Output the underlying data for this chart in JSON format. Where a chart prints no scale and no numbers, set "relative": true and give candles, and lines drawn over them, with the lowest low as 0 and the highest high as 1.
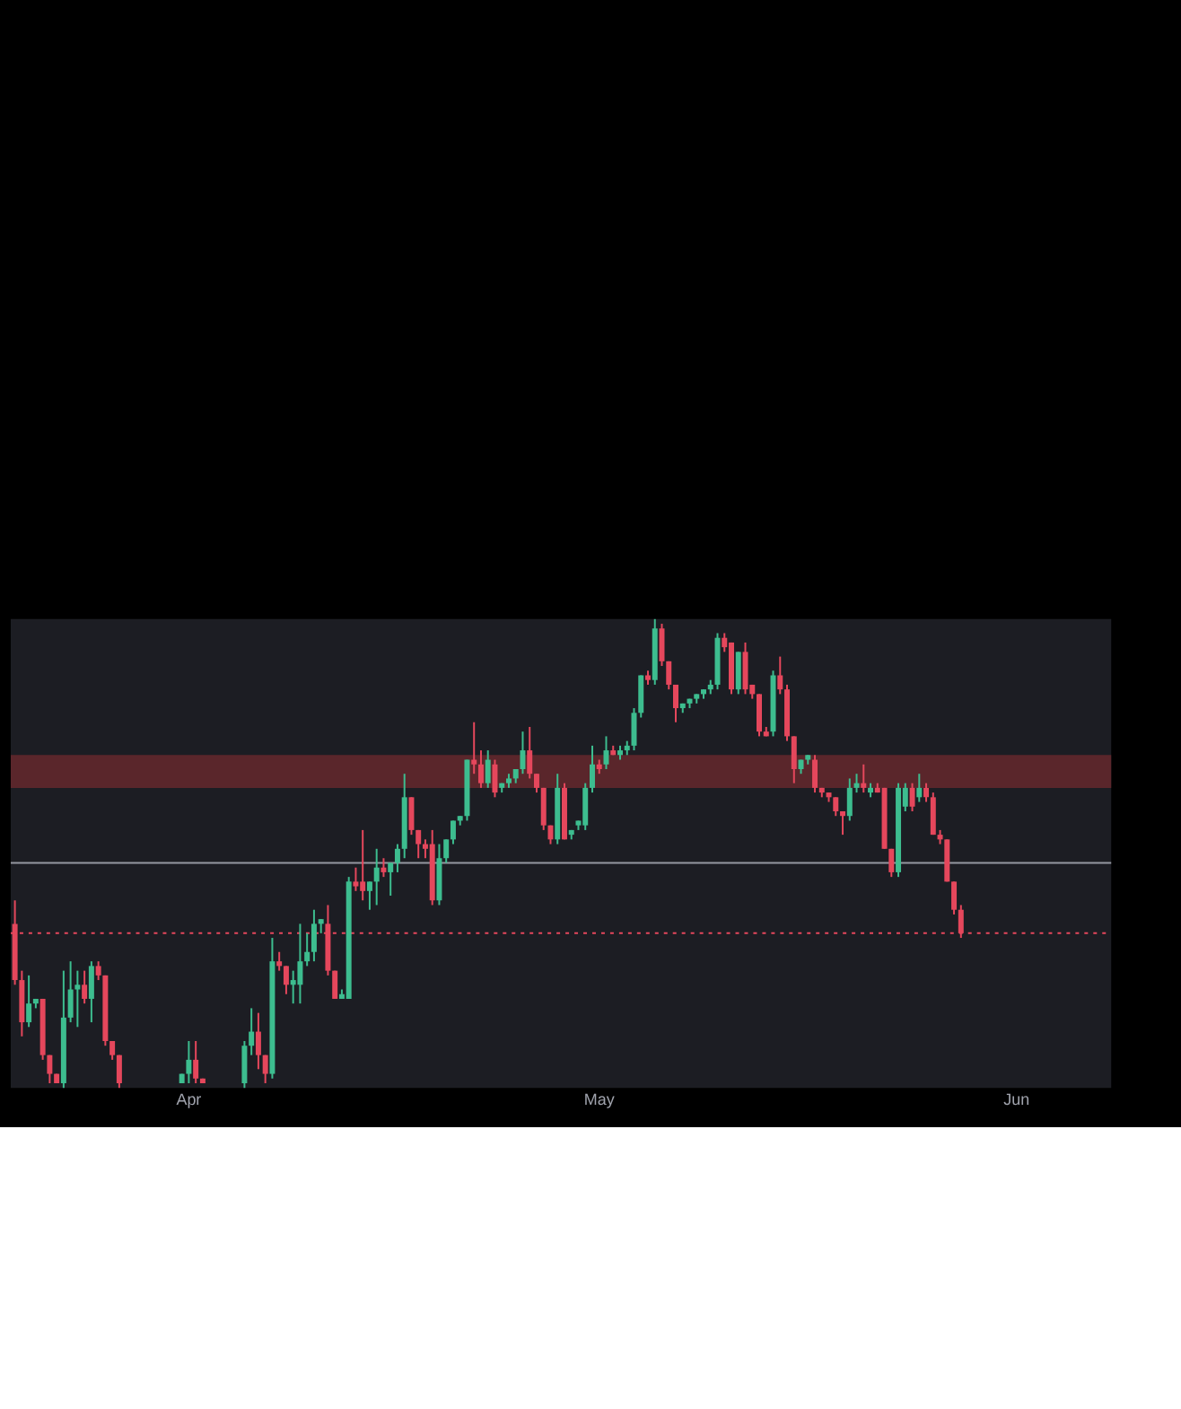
{
  "chart_data": {
    "type": "candlestick",
    "relative": true,
    "categories": [
      null,
      null,
      null,
      null,
      null,
      null,
      null,
      null,
      null,
      null,
      null,
      null,
      null,
      null,
      null,
      null,
      null,
      null,
      null,
      null,
      null,
      null,
      null,
      null,
      null,
      "Apr",
      null,
      null,
      null,
      null,
      null,
      null,
      null,
      null,
      null,
      null,
      null,
      null,
      null,
      null,
      null,
      null,
      null,
      null,
      null,
      null,
      null,
      null,
      null,
      null,
      null,
      null,
      null,
      null,
      null,
      null,
      null,
      null,
      null,
      null,
      null,
      null,
      null,
      null,
      null,
      null,
      null,
      null,
      null,
      null,
      null,
      null,
      null,
      null,
      null,
      null,
      null,
      null,
      null,
      null,
      null,
      null,
      null,
      null,
      "May",
      null,
      null,
      null,
      null,
      null,
      null,
      null,
      null,
      null,
      null,
      null,
      null,
      null,
      null,
      null,
      null,
      null,
      null,
      null,
      null,
      null,
      null,
      null,
      null,
      null,
      null,
      null,
      null,
      null,
      null,
      null,
      null,
      null,
      null,
      null,
      null,
      null,
      null,
      null,
      null,
      null,
      null,
      null,
      null,
      null,
      null,
      null,
      null,
      null,
      null,
      null,
      null,
      null,
      null,
      null,
      null,
      null,
      null,
      null,
      "Jun",
      null,
      null,
      null,
      null,
      null,
      null,
      null,
      null,
      null,
      null,
      null,
      null,
      null
    ],
    "ohlc": [
      [
        0.35,
        0.4,
        0.22,
        0.23
      ],
      [
        0.23,
        0.25,
        0.11,
        0.14
      ],
      [
        0.14,
        0.24,
        0.13,
        0.18
      ],
      [
        0.18,
        0.19,
        0.17,
        0.19
      ],
      [
        0.19,
        0.19,
        0.06,
        0.07
      ],
      [
        0.07,
        0.07,
        0.01,
        0.03
      ],
      [
        0.03,
        0.03,
        0.01,
        0.01
      ],
      [
        0.01,
        0.25,
        0,
        0.15
      ],
      [
        0.15,
        0.27,
        0.14,
        0.21
      ],
      [
        0.21,
        0.25,
        0.13,
        0.22
      ],
      [
        0.22,
        0.25,
        0.18,
        0.19
      ],
      [
        0.19,
        0.27,
        0.14,
        0.26
      ],
      [
        0.26,
        0.27,
        0.23,
        0.24
      ],
      [
        0.24,
        0.24,
        0.09,
        0.1
      ],
      [
        0.1,
        0.1,
        0.06,
        0.07
      ],
      [
        0.07,
        0.07,
        0,
        0.01
      ],
      null,
      null,
      null,
      null,
      null,
      null,
      null,
      null,
      [
        0.01,
        0.03,
        0.01,
        0.03
      ],
      [
        0.03,
        0.1,
        0.01,
        0.06
      ],
      [
        0.06,
        0.1,
        0.01,
        0.02
      ],
      [
        0.02,
        0.02,
        0.01,
        0.01
      ],
      null,
      null,
      null,
      null,
      null,
      [
        0.01,
        0.1,
        0,
        0.09
      ],
      [
        0.09,
        0.17,
        0.07,
        0.12
      ],
      [
        0.12,
        0.16,
        0.04,
        0.07
      ],
      [
        0.07,
        0.07,
        0.01,
        0.03
      ],
      [
        0.03,
        0.32,
        0.02,
        0.27
      ],
      [
        0.27,
        0.29,
        0.25,
        0.26
      ],
      [
        0.26,
        0.26,
        0.2,
        0.22
      ],
      [
        0.22,
        0.25,
        0.18,
        0.23
      ],
      [
        0.22,
        0.35,
        0.18,
        0.27
      ],
      [
        0.27,
        0.33,
        0.26,
        0.29
      ],
      [
        0.29,
        0.38,
        0.27,
        0.35
      ],
      [
        0.35,
        0.36,
        0.33,
        0.36
      ],
      [
        0.35,
        0.39,
        0.24,
        0.25
      ],
      [
        0.25,
        0.25,
        0.19,
        0.19
      ],
      [
        0.19,
        0.21,
        0.19,
        0.2
      ],
      [
        0.19,
        0.45,
        0.19,
        0.44
      ],
      [
        0.44,
        0.47,
        0.42,
        0.43
      ],
      [
        0.44,
        0.55,
        0.4,
        0.42
      ],
      [
        0.42,
        0.44,
        0.38,
        0.44
      ],
      [
        0.44,
        0.51,
        0.39,
        0.47
      ],
      [
        0.47,
        0.49,
        0.45,
        0.46
      ],
      [
        0.46,
        0.48,
        0.41,
        0.48
      ],
      [
        0.48,
        0.52,
        0.46,
        0.51
      ],
      [
        0.51,
        0.67,
        0.49,
        0.62
      ],
      [
        0.62,
        0.62,
        0.54,
        0.55
      ],
      [
        0.55,
        0.55,
        0.49,
        0.52
      ],
      [
        0.52,
        0.53,
        0.49,
        0.51
      ],
      [
        0.52,
        0.55,
        0.39,
        0.4
      ],
      [
        0.4,
        0.52,
        0.39,
        0.49
      ],
      [
        0.49,
        0.53,
        0.48,
        0.53
      ],
      [
        0.53,
        0.57,
        0.52,
        0.57
      ],
      [
        0.57,
        0.58,
        0.56,
        0.58
      ],
      [
        0.58,
        0.7,
        0.57,
        0.7
      ],
      [
        0.7,
        0.78,
        0.67,
        0.69
      ],
      [
        0.69,
        0.72,
        0.64,
        0.65
      ],
      [
        0.65,
        0.72,
        0.64,
        0.7
      ],
      [
        0.69,
        0.7,
        0.62,
        0.63
      ],
      [
        0.64,
        0.65,
        0.63,
        0.65
      ],
      [
        0.65,
        0.67,
        0.64,
        0.66
      ],
      [
        0.66,
        0.68,
        0.65,
        0.68
      ],
      [
        0.68,
        0.76,
        0.67,
        0.72
      ],
      [
        0.72,
        0.77,
        0.66,
        0.67
      ],
      [
        0.67,
        0.67,
        0.63,
        0.64
      ],
      [
        0.64,
        0.64,
        0.55,
        0.56
      ],
      [
        0.56,
        0.56,
        0.52,
        0.53
      ],
      [
        0.53,
        0.67,
        0.52,
        0.64
      ],
      [
        0.64,
        0.65,
        0.53,
        0.53
      ],
      [
        0.54,
        0.55,
        0.53,
        0.55
      ],
      [
        0.56,
        0.57,
        0.55,
        0.57
      ],
      [
        0.56,
        0.65,
        0.55,
        0.64
      ],
      [
        0.64,
        0.73,
        0.63,
        0.69
      ],
      [
        0.69,
        0.7,
        0.67,
        0.68
      ],
      [
        0.69,
        0.75,
        0.68,
        0.72
      ],
      [
        0.72,
        0.73,
        0.71,
        0.71
      ],
      [
        0.71,
        0.73,
        0.7,
        0.72
      ],
      [
        0.72,
        0.74,
        0.71,
        0.73
      ],
      [
        0.73,
        0.81,
        0.72,
        0.8
      ],
      [
        0.8,
        0.88,
        0.79,
        0.88
      ],
      [
        0.88,
        0.89,
        0.86,
        0.87
      ],
      [
        0.87,
        1.0,
        0.86,
        0.98
      ],
      [
        0.98,
        0.99,
        0.9,
        0.91
      ],
      [
        0.91,
        0.91,
        0.85,
        0.86
      ],
      [
        0.86,
        0.86,
        0.78,
        0.81
      ],
      [
        0.81,
        0.82,
        0.8,
        0.82
      ],
      [
        0.82,
        0.83,
        0.81,
        0.83
      ],
      [
        0.83,
        0.84,
        0.82,
        0.84
      ],
      [
        0.84,
        0.85,
        0.83,
        0.85
      ],
      [
        0.85,
        0.87,
        0.84,
        0.86
      ],
      [
        0.86,
        0.97,
        0.85,
        0.96
      ],
      [
        0.96,
        0.97,
        0.93,
        0.94
      ],
      [
        0.95,
        0.95,
        0.84,
        0.85
      ],
      [
        0.85,
        0.93,
        0.84,
        0.93
      ],
      [
        0.93,
        0.95,
        0.84,
        0.85
      ],
      [
        0.86,
        0.86,
        0.83,
        0.84
      ],
      [
        0.84,
        0.84,
        0.75,
        0.76
      ],
      [
        0.76,
        0.77,
        0.75,
        0.75
      ],
      [
        0.76,
        0.89,
        0.75,
        0.88
      ],
      [
        0.88,
        0.92,
        0.84,
        0.85
      ],
      [
        0.85,
        0.86,
        0.74,
        0.75
      ],
      [
        0.75,
        0.75,
        0.65,
        0.68
      ],
      [
        0.68,
        0.7,
        0.67,
        0.7
      ],
      [
        0.7,
        0.71,
        0.69,
        0.71
      ],
      [
        0.7,
        0.71,
        0.63,
        0.64
      ],
      [
        0.64,
        0.64,
        0.62,
        0.63
      ],
      [
        0.63,
        0.63,
        0.61,
        0.62
      ],
      [
        0.62,
        0.62,
        0.58,
        0.59
      ],
      [
        0.59,
        0.59,
        0.54,
        0.58
      ],
      [
        0.58,
        0.66,
        0.57,
        0.64
      ],
      [
        0.64,
        0.67,
        0.63,
        0.65
      ],
      [
        0.65,
        0.69,
        0.63,
        0.64
      ],
      [
        0.63,
        0.65,
        0.62,
        0.64
      ],
      [
        0.64,
        0.65,
        0.63,
        0.63
      ],
      [
        0.64,
        0.64,
        0.51,
        0.51
      ],
      [
        0.51,
        0.51,
        0.45,
        0.46
      ],
      [
        0.46,
        0.65,
        0.45,
        0.64
      ],
      [
        0.6,
        0.65,
        0.59,
        0.64
      ],
      [
        0.64,
        0.65,
        0.59,
        0.6
      ],
      [
        0.62,
        0.67,
        0.61,
        0.64
      ],
      [
        0.64,
        0.65,
        0.61,
        0.62
      ],
      [
        0.62,
        0.63,
        0.54,
        0.54
      ],
      [
        0.54,
        0.55,
        0.52,
        0.53
      ],
      [
        0.53,
        0.53,
        0.44,
        0.44
      ],
      [
        0.44,
        0.44,
        0.37,
        0.38
      ],
      [
        0.38,
        0.39,
        0.32,
        0.33
      ],
      null,
      null,
      null,
      null,
      null,
      null,
      null,
      null,
      null,
      null,
      null,
      null,
      null,
      null,
      null,
      null,
      null,
      null,
      null,
      null,
      null
    ],
    "colors": [
      "#e5475c",
      "#e5475c",
      "#3dbd8f",
      "#3dbd8f",
      "#e5475c",
      "#e5475c",
      "#e5475c",
      "#3dbd8f",
      "#3dbd8f",
      "#3dbd8f",
      "#e5475c",
      "#3dbd8f",
      "#e5475c",
      "#e5475c",
      "#e5475c",
      "#e5475c",
      null,
      null,
      null,
      null,
      null,
      null,
      null,
      null,
      "#3dbd8f",
      "#3dbd8f",
      "#e5475c",
      "#e5475c",
      null,
      null,
      null,
      null,
      null,
      "#3dbd8f",
      "#3dbd8f",
      "#e5475c",
      "#e5475c",
      "#3dbd8f",
      "#e5475c",
      "#e5475c",
      "#3dbd8f",
      "#3dbd8f",
      "#3dbd8f",
      "#3dbd8f",
      "#3dbd8f",
      "#e5475c",
      "#e5475c",
      "#3dbd8f",
      "#3dbd8f",
      "#e5475c",
      "#e5475c",
      "#3dbd8f",
      "#3dbd8f",
      "#e5475c",
      "#3dbd8f",
      "#3dbd8f",
      "#3dbd8f",
      "#e5475c",
      "#e5475c",
      "#e5475c",
      "#e5475c",
      "#3dbd8f",
      "#3dbd8f",
      "#3dbd8f",
      "#3dbd8f",
      "#3dbd8f",
      "#e5475c",
      "#e5475c",
      "#3dbd8f",
      "#e5475c",
      "#3dbd8f",
      "#3dbd8f",
      "#3dbd8f",
      "#3dbd8f",
      "#e5475c",
      "#e5475c",
      "#e5475c",
      "#e5475c",
      "#3dbd8f",
      "#e5475c",
      "#3dbd8f",
      "#3dbd8f",
      "#3dbd8f",
      "#3dbd8f",
      "#e5475c",
      "#3dbd8f",
      "#e5475c",
      "#3dbd8f",
      "#3dbd8f",
      "#3dbd8f",
      "#3dbd8f",
      "#e5475c",
      "#3dbd8f",
      "#e5475c",
      "#e5475c",
      "#e5475c",
      "#3dbd8f",
      "#3dbd8f",
      "#3dbd8f",
      "#3dbd8f",
      "#3dbd8f",
      "#3dbd8f",
      "#e5475c",
      "#e5475c",
      "#3dbd8f",
      "#e5475c",
      "#e5475c",
      "#e5475c",
      "#e5475c",
      "#3dbd8f",
      "#e5475c",
      "#e5475c",
      "#e5475c",
      "#3dbd8f",
      "#3dbd8f",
      "#e5475c",
      "#e5475c",
      "#e5475c",
      "#e5475c",
      "#e5475c",
      "#3dbd8f",
      "#3dbd8f",
      "#e5475c",
      "#3dbd8f",
      "#e5475c",
      "#e5475c",
      "#e5475c",
      "#3dbd8f",
      "#3dbd8f",
      "#e5475c",
      "#3dbd8f",
      "#e5475c",
      "#e5475c",
      "#e5475c",
      "#e5475c",
      "#e5475c",
      "#e5475c",
      null,
      null,
      null,
      null,
      null,
      null,
      null,
      null,
      null,
      null,
      null,
      null,
      null,
      null,
      null,
      null,
      null,
      null,
      null,
      null,
      null
    ],
    "ref_lines": [
      {
        "axis": "y",
        "value": 0.48,
        "color": "#9598a1",
        "line_style": "solid"
      },
      {
        "axis": "y",
        "value": 0.33,
        "color": "#e5475c",
        "line_style": "dotted"
      }
    ],
    "bands": [
      {
        "axis": "y",
        "from": 0.64,
        "to": 0.71,
        "color": "#5a262b"
      }
    ]
  }
}
